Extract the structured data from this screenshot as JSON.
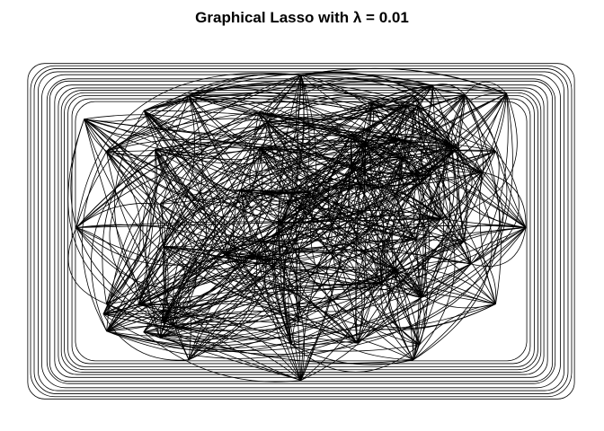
{
  "title": "Graphical Lasso with λ =  0.01",
  "graph": {
    "type": "network",
    "edge_color": "#000000",
    "background": "#ffffff",
    "node_count": 60,
    "edge_count": 600,
    "seed": 20240101
  }
}
